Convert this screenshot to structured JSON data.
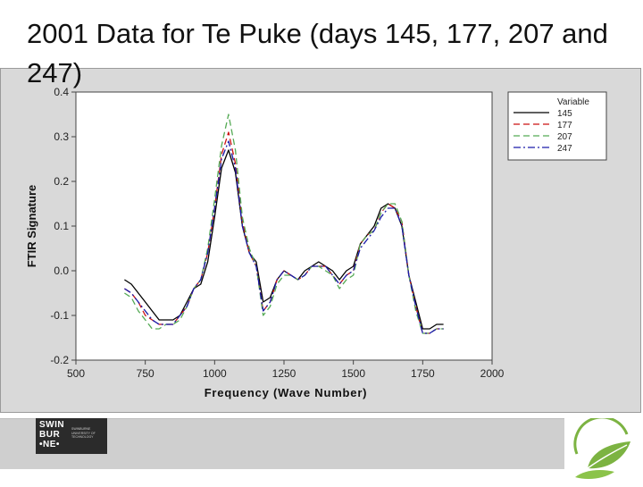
{
  "slide": {
    "title": "2001 Data for Te Puke (days 145, 177, 207 and 247)"
  },
  "footer": {
    "university_logo_text": [
      "SWIN",
      "BUR",
      "•NE•"
    ],
    "university_logo_subtext": "SWINBURNE UNIVERSITY OF TECHNOLOGY"
  },
  "colors": {
    "frame_background": "#d9d9d9",
    "plot_background": "#ffffff",
    "series_145": "#000000",
    "series_177": "#cc1111",
    "series_207": "#55aa55",
    "series_247": "#1a1aaa",
    "footer_band": "#cfcfcf",
    "logo_leaf": "#7cb342"
  },
  "icons": [
    "swinburne-logo-icon",
    "leaf-logo-icon"
  ],
  "chart_data": {
    "type": "line",
    "title": "",
    "xlabel": "Frequency (Wave Number)",
    "ylabel": "FTIR Signature",
    "xlim": [
      500,
      2000
    ],
    "ylim": [
      -0.2,
      0.4
    ],
    "xticks": [
      "500",
      "750",
      "1000",
      "1250",
      "1500",
      "1750",
      "2000"
    ],
    "yticks": [
      "0.4",
      "0.3",
      "0.2",
      "0.1",
      "0.0",
      "-0.1",
      "-0.2"
    ],
    "grid": false,
    "legend": {
      "title": "Variable",
      "position": "top-right"
    },
    "x": [
      675,
      700,
      725,
      750,
      775,
      800,
      825,
      850,
      875,
      900,
      925,
      950,
      975,
      1000,
      1025,
      1050,
      1075,
      1100,
      1125,
      1150,
      1175,
      1200,
      1225,
      1250,
      1275,
      1300,
      1325,
      1350,
      1375,
      1400,
      1425,
      1450,
      1475,
      1500,
      1525,
      1550,
      1575,
      1600,
      1625,
      1650,
      1675,
      1700,
      1725,
      1750,
      1775,
      1800,
      1825
    ],
    "series": [
      {
        "name": "145",
        "style": "solid",
        "values": [
          -0.02,
          -0.03,
          -0.05,
          -0.07,
          -0.09,
          -0.11,
          -0.11,
          -0.11,
          -0.1,
          -0.07,
          -0.04,
          -0.03,
          0.02,
          0.12,
          0.23,
          0.27,
          0.22,
          0.1,
          0.04,
          0.02,
          -0.07,
          -0.06,
          -0.02,
          -0.0,
          -0.01,
          -0.02,
          0.0,
          0.01,
          0.02,
          0.01,
          0.0,
          -0.02,
          0.0,
          0.01,
          0.06,
          0.08,
          0.1,
          0.14,
          0.15,
          0.14,
          0.1,
          -0.01,
          -0.07,
          -0.13,
          -0.13,
          -0.12,
          -0.12
        ]
      },
      {
        "name": "177",
        "style": "dashed",
        "values": [
          -0.04,
          -0.05,
          -0.07,
          -0.1,
          -0.11,
          -0.12,
          -0.12,
          -0.12,
          -0.1,
          -0.08,
          -0.04,
          -0.02,
          0.04,
          0.14,
          0.26,
          0.31,
          0.24,
          0.11,
          0.04,
          0.01,
          -0.09,
          -0.07,
          -0.02,
          -0.0,
          -0.01,
          -0.02,
          -0.01,
          0.01,
          0.01,
          0.01,
          -0.01,
          -0.03,
          -0.01,
          0.0,
          0.06,
          0.08,
          0.09,
          0.13,
          0.15,
          0.14,
          0.11,
          -0.01,
          -0.08,
          -0.14,
          -0.14,
          -0.13,
          -0.13
        ]
      },
      {
        "name": "207",
        "style": "dashed",
        "values": [
          -0.05,
          -0.06,
          -0.09,
          -0.11,
          -0.13,
          -0.13,
          -0.12,
          -0.12,
          -0.11,
          -0.08,
          -0.04,
          -0.02,
          0.05,
          0.16,
          0.28,
          0.35,
          0.27,
          0.12,
          0.05,
          0.01,
          -0.1,
          -0.08,
          -0.03,
          -0.01,
          -0.01,
          -0.02,
          -0.01,
          0.01,
          0.01,
          0.0,
          -0.01,
          -0.04,
          -0.02,
          -0.01,
          0.06,
          0.08,
          0.09,
          0.13,
          0.15,
          0.15,
          0.11,
          -0.01,
          -0.09,
          -0.14,
          -0.14,
          -0.13,
          -0.13
        ]
      },
      {
        "name": "247",
        "style": "dashdot",
        "values": [
          -0.04,
          -0.05,
          -0.07,
          -0.09,
          -0.11,
          -0.12,
          -0.12,
          -0.12,
          -0.1,
          -0.08,
          -0.04,
          -0.02,
          0.04,
          0.14,
          0.25,
          0.29,
          0.23,
          0.1,
          0.04,
          0.01,
          -0.09,
          -0.07,
          -0.02,
          -0.0,
          -0.01,
          -0.02,
          -0.01,
          0.01,
          0.01,
          0.01,
          -0.01,
          -0.03,
          -0.01,
          0.0,
          0.05,
          0.07,
          0.09,
          0.12,
          0.14,
          0.14,
          0.1,
          -0.01,
          -0.08,
          -0.14,
          -0.14,
          -0.13,
          -0.13
        ]
      }
    ]
  }
}
